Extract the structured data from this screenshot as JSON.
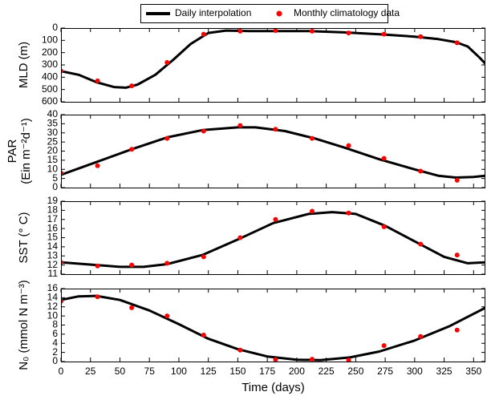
{
  "chart_data": [
    {
      "type": "line",
      "ylabel": "MLD (m)",
      "xlim": [
        0,
        360
      ],
      "xticks": [
        0,
        25,
        50,
        75,
        100,
        125,
        150,
        175,
        200,
        225,
        250,
        275,
        300,
        325,
        350
      ],
      "ylim": [
        0,
        600
      ],
      "y_inverted": true,
      "yticks": [
        0,
        100,
        200,
        300,
        400,
        500,
        600
      ],
      "series": [
        {
          "name": "Daily interpolation",
          "type": "line",
          "color": "#000000",
          "x": [
            0,
            15,
            30,
            45,
            55,
            65,
            80,
            95,
            110,
            125,
            140,
            160,
            180,
            210,
            240,
            270,
            300,
            320,
            335,
            345,
            355,
            360
          ],
          "values": [
            350,
            380,
            440,
            480,
            485,
            460,
            380,
            260,
            130,
            40,
            20,
            25,
            25,
            25,
            35,
            50,
            70,
            90,
            115,
            150,
            240,
            290
          ]
        },
        {
          "name": "Monthly climatology data",
          "type": "scatter",
          "color": "#ff0000",
          "x": [
            0,
            31,
            60,
            90,
            121,
            152,
            182,
            213,
            244,
            274,
            305,
            336
          ],
          "values": [
            350,
            430,
            470,
            280,
            50,
            25,
            20,
            25,
            40,
            50,
            70,
            120
          ]
        }
      ]
    },
    {
      "type": "line",
      "ylabel": [
        "PAR",
        "(Ein m⁻²d⁻¹)"
      ],
      "xlim": [
        0,
        360
      ],
      "xticks": [
        0,
        25,
        50,
        75,
        100,
        125,
        150,
        175,
        200,
        225,
        250,
        275,
        300,
        325,
        350
      ],
      "ylim": [
        0,
        40
      ],
      "yticks": [
        0,
        5,
        10,
        15,
        20,
        25,
        30,
        35,
        40
      ],
      "series": [
        {
          "type": "line",
          "color": "#000000",
          "x": [
            0,
            30,
            60,
            90,
            120,
            150,
            165,
            190,
            215,
            240,
            270,
            300,
            320,
            335,
            350,
            360
          ],
          "values": [
            7,
            14,
            21,
            27.5,
            31.5,
            33,
            33,
            31,
            27,
            22,
            15.5,
            10,
            6.5,
            5.5,
            5.8,
            6.5
          ]
        },
        {
          "type": "scatter",
          "color": "#ff0000",
          "x": [
            0,
            31,
            60,
            90,
            121,
            152,
            182,
            213,
            244,
            274,
            305,
            336
          ],
          "values": [
            8,
            12,
            21,
            27,
            31,
            34,
            32,
            27,
            23,
            16,
            9,
            4
          ]
        }
      ]
    },
    {
      "type": "line",
      "ylabel": "SST (° C)",
      "xlim": [
        0,
        360
      ],
      "xticks": [
        0,
        25,
        50,
        75,
        100,
        125,
        150,
        175,
        200,
        225,
        250,
        275,
        300,
        325,
        350
      ],
      "ylim": [
        11,
        19
      ],
      "yticks": [
        11,
        12,
        13,
        14,
        15,
        16,
        17,
        18,
        19
      ],
      "series": [
        {
          "type": "line",
          "color": "#000000",
          "x": [
            0,
            30,
            50,
            70,
            90,
            120,
            150,
            180,
            210,
            230,
            250,
            275,
            300,
            325,
            345,
            360
          ],
          "values": [
            12.3,
            12.0,
            11.8,
            11.8,
            12.1,
            13.1,
            14.8,
            16.6,
            17.6,
            17.8,
            17.6,
            16.3,
            14.6,
            12.9,
            12.2,
            12.3
          ]
        },
        {
          "type": "scatter",
          "color": "#ff0000",
          "x": [
            0,
            31,
            60,
            90,
            121,
            152,
            182,
            213,
            244,
            274,
            305,
            336
          ],
          "values": [
            12.3,
            11.9,
            12.0,
            12.2,
            12.9,
            15.0,
            17.0,
            17.9,
            17.7,
            16.2,
            14.3,
            13.1
          ]
        }
      ]
    },
    {
      "type": "line",
      "ylabel": "N₀ (mmol N m⁻³)",
      "xlabel": "Time (days)",
      "xlim": [
        0,
        360
      ],
      "xticks": [
        0,
        25,
        50,
        75,
        100,
        125,
        150,
        175,
        200,
        225,
        250,
        275,
        300,
        325,
        350
      ],
      "ylim": [
        0,
        16
      ],
      "yticks": [
        0,
        2,
        4,
        6,
        8,
        10,
        12,
        14,
        16
      ],
      "series": [
        {
          "type": "line",
          "color": "#000000",
          "x": [
            0,
            15,
            30,
            50,
            75,
            100,
            125,
            150,
            175,
            200,
            220,
            245,
            270,
            300,
            330,
            360
          ],
          "values": [
            13.5,
            14.3,
            14.4,
            13.5,
            11.2,
            8.2,
            5.0,
            2.7,
            1.1,
            0.4,
            0.3,
            0.9,
            2.2,
            4.6,
            7.8,
            11.8
          ]
        },
        {
          "type": "scatter",
          "color": "#ff0000",
          "x": [
            0,
            31,
            60,
            90,
            121,
            152,
            182,
            213,
            244,
            274,
            305,
            336
          ],
          "values": [
            13.2,
            14.2,
            11.8,
            10.0,
            5.8,
            2.5,
            0.4,
            0.5,
            0.3,
            3.5,
            5.5,
            6.9
          ]
        }
      ]
    }
  ]
}
